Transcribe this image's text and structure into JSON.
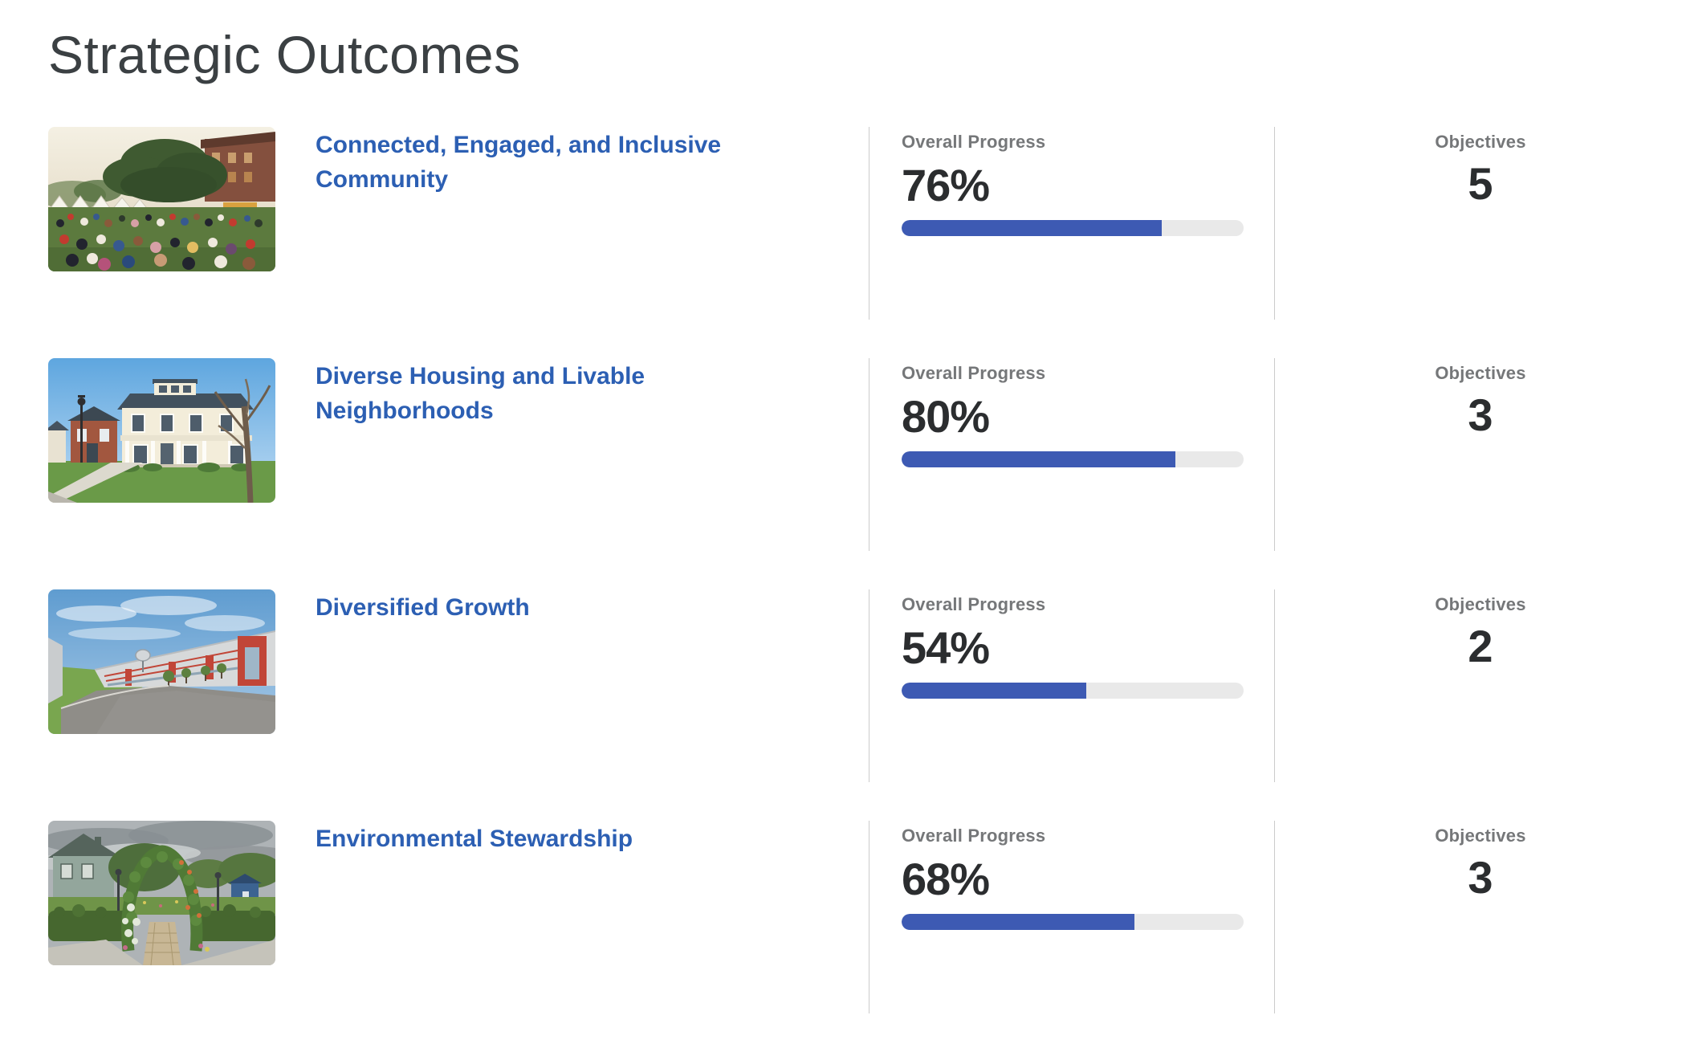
{
  "page": {
    "title": "Strategic Outcomes"
  },
  "labels": {
    "overall_progress": "Overall Progress",
    "objectives": "Objectives"
  },
  "colors": {
    "heading_text": "#3b4043",
    "link_blue": "#2c5fb3",
    "bar_fill_blue": "#3d5ab3",
    "bar_track_gray": "#e9e9e9",
    "label_gray": "#757779",
    "number_dark": "#2b2d2f",
    "divider_gray": "#cbcbcb"
  },
  "outcomes": [
    {
      "title": "Connected, Engaged, and Inclusive Community",
      "progress_percent": 76,
      "progress_text": "76%",
      "objectives_count": "5",
      "image_name": "community-festival-photo"
    },
    {
      "title": "Diverse Housing and Livable Neighborhoods",
      "progress_percent": 80,
      "progress_text": "80%",
      "objectives_count": "3",
      "image_name": "residential-street-photo"
    },
    {
      "title": "Diversified Growth",
      "progress_percent": 54,
      "progress_text": "54%",
      "objectives_count": "2",
      "image_name": "commercial-development-photo"
    },
    {
      "title": "Environmental Stewardship",
      "progress_percent": 68,
      "progress_text": "68%",
      "objectives_count": "3",
      "image_name": "garden-arch-photo"
    }
  ]
}
